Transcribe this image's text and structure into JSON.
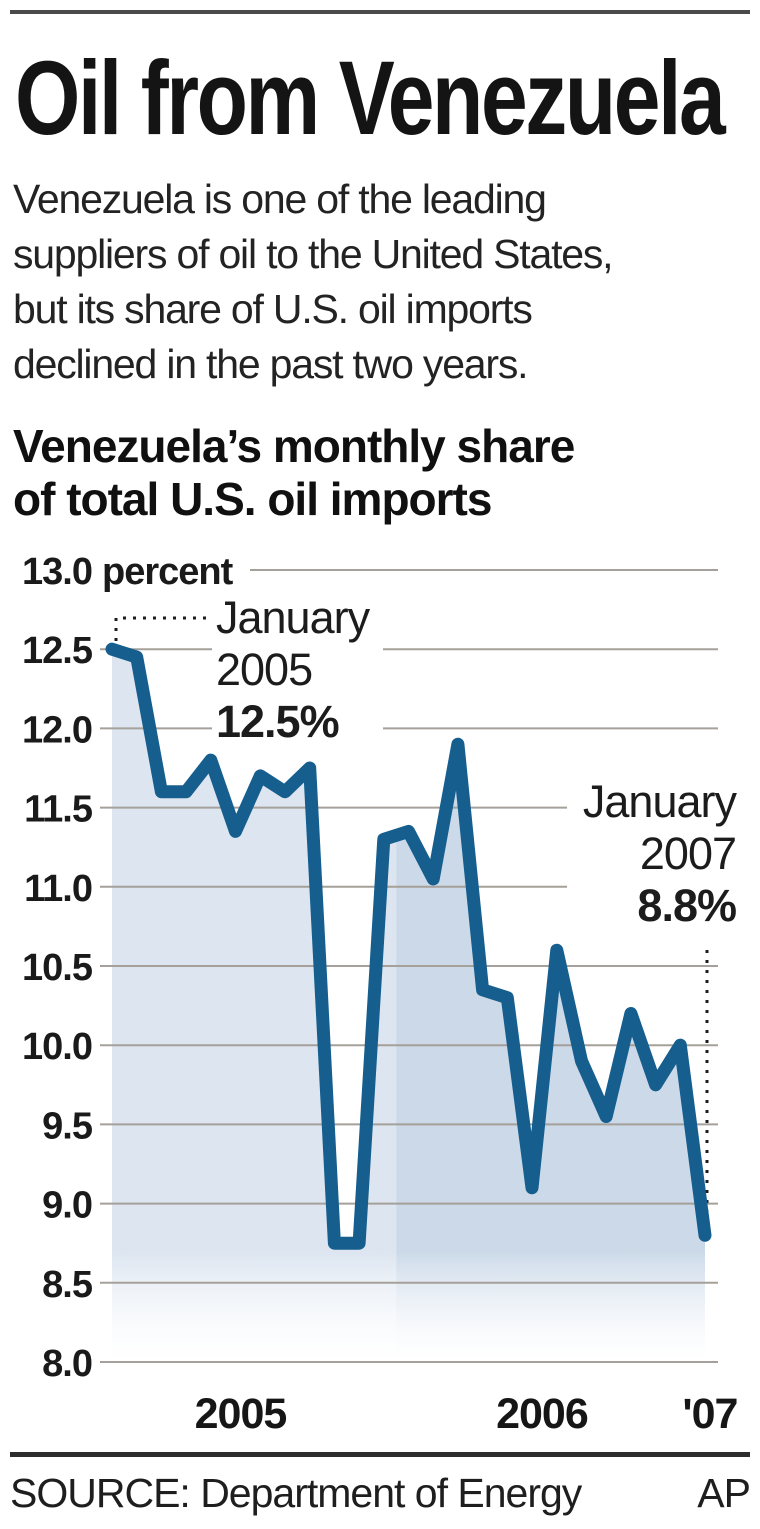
{
  "header": {
    "title": "Oil from Venezuela"
  },
  "intro": {
    "lines": [
      "Venezuela is one of the leading",
      "suppliers of oil to the United States,",
      "but its share of U.S. oil imports",
      "declined in the past two years."
    ]
  },
  "chart_heading": {
    "lines": [
      "Venezuela’s monthly share",
      "of total U.S. oil imports"
    ]
  },
  "footer": {
    "source": "SOURCE: Department of Energy",
    "credit": "AP"
  },
  "colors": {
    "line": "#155e8e",
    "grid": "#a5a09a",
    "text": "#1a1a1a",
    "fill_2005": "#dce5f0",
    "fill_2006": "#cbd9e8"
  },
  "chart_data": {
    "type": "area",
    "title": "Venezuela's monthly share of total U.S. oil imports",
    "unit_label": "percent",
    "ylim": [
      8.0,
      13.0
    ],
    "y_tick_step": 0.5,
    "grid": true,
    "legend": "none",
    "x": [
      "Jan 2005",
      "Feb 2005",
      "Mar 2005",
      "Apr 2005",
      "May 2005",
      "Jun 2005",
      "Jul 2005",
      "Aug 2005",
      "Sep 2005",
      "Oct 2005",
      "Nov 2005",
      "Dec 2005",
      "Jan 2006",
      "Feb 2006",
      "Mar 2006",
      "Apr 2006",
      "May 2006",
      "Jun 2006",
      "Jul 2006",
      "Aug 2006",
      "Sep 2006",
      "Oct 2006",
      "Nov 2006",
      "Dec 2006",
      "Jan 2007"
    ],
    "values": [
      12.5,
      12.45,
      11.6,
      11.6,
      11.8,
      11.35,
      11.7,
      11.6,
      11.75,
      8.75,
      8.75,
      11.3,
      11.35,
      11.05,
      11.9,
      10.35,
      10.3,
      9.1,
      10.6,
      9.9,
      9.55,
      10.2,
      9.75,
      10.0,
      8.8
    ],
    "x_axis_labels": [
      {
        "label": "2005",
        "center_month": 5.2
      },
      {
        "label": "2006",
        "center_month": 17.4
      },
      {
        "label": "'07",
        "center_month": 24.2
      }
    ],
    "annotations": [
      {
        "line1": "January",
        "line2": "2005",
        "value_label": "12.5%",
        "month_index": 0,
        "value": 12.5
      },
      {
        "line1": "January",
        "line2": "2007",
        "value_label": "8.8%",
        "month_index": 24,
        "value": 8.8
      }
    ],
    "era_shading": [
      {
        "from_month": 0,
        "to_month": 11,
        "fill": "#dce5f0"
      },
      {
        "from_month": 12,
        "to_month": 24,
        "fill": "#cbd9e8"
      }
    ]
  }
}
